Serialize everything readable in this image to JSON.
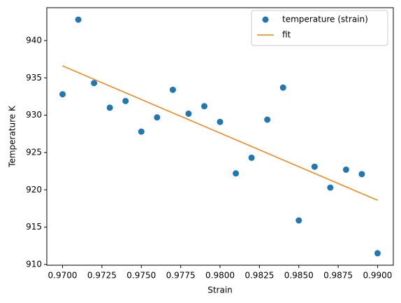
{
  "chart_data": {
    "type": "scatter",
    "xlabel": "Strain",
    "ylabel": "Temperature K",
    "xlim": [
      0.969,
      0.991
    ],
    "ylim": [
      909.9,
      944.4
    ],
    "xticks": [
      {
        "value": 0.97,
        "label": "0.9700"
      },
      {
        "value": 0.9725,
        "label": "0.9725"
      },
      {
        "value": 0.975,
        "label": "0.9750"
      },
      {
        "value": 0.9775,
        "label": "0.9775"
      },
      {
        "value": 0.98,
        "label": "0.9800"
      },
      {
        "value": 0.9825,
        "label": "0.9825"
      },
      {
        "value": 0.985,
        "label": "0.9850"
      },
      {
        "value": 0.9875,
        "label": "0.9875"
      },
      {
        "value": 0.99,
        "label": "0.9900"
      }
    ],
    "yticks": [
      910,
      915,
      920,
      925,
      930,
      935,
      940
    ],
    "legend": "upper right",
    "series": [
      {
        "name": "temperature (strain)",
        "color": "#1f77b4",
        "kind": "scatter",
        "x": [
          0.97,
          0.971,
          0.972,
          0.973,
          0.974,
          0.975,
          0.976,
          0.977,
          0.978,
          0.979,
          0.98,
          0.981,
          0.982,
          0.983,
          0.984,
          0.985,
          0.986,
          0.987,
          0.988,
          0.989,
          0.99
        ],
        "values": [
          932.8,
          942.8,
          934.3,
          931.0,
          931.9,
          927.8,
          929.7,
          933.4,
          930.2,
          931.2,
          929.1,
          922.2,
          924.3,
          929.4,
          933.7,
          915.9,
          923.1,
          920.3,
          922.7,
          922.1,
          911.5
        ]
      },
      {
        "name": "fit",
        "color": "#ff7f0e",
        "kind": "line",
        "x": [
          0.97,
          0.99
        ],
        "values": [
          936.6,
          918.6
        ]
      }
    ]
  }
}
